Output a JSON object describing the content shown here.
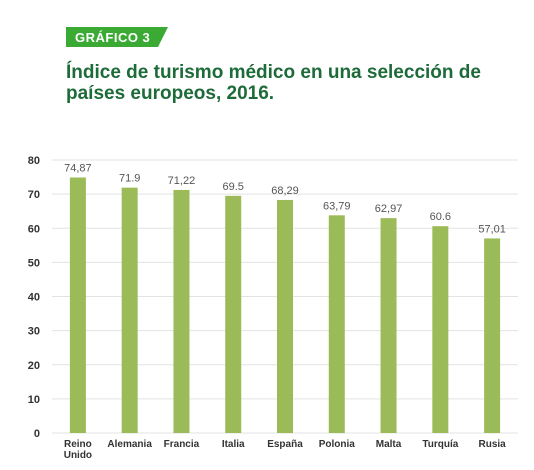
{
  "badge": {
    "label": "GRÁFICO 3",
    "color": "#3aaa35"
  },
  "title": "Índice de turismo médico en una selección de países europeos, 2016.",
  "chart_data": {
    "type": "bar",
    "title": "Índice de turismo médico en una selección de países europeos, 2016.",
    "xlabel": "",
    "ylabel": "",
    "categories": [
      "Reino Unido",
      "Alemania",
      "Francia",
      "Italia",
      "España",
      "Polonia",
      "Malta",
      "Turquía",
      "Rusia"
    ],
    "category_lines": [
      [
        "Reino",
        "Unido"
      ],
      [
        "Alemania"
      ],
      [
        "Francia"
      ],
      [
        "Italia"
      ],
      [
        "España"
      ],
      [
        "Polonia"
      ],
      [
        "Malta"
      ],
      [
        "Turquía"
      ],
      [
        "Rusia"
      ]
    ],
    "values": [
      74.87,
      71.9,
      71.22,
      69.5,
      68.29,
      63.79,
      62.97,
      60.6,
      57.01
    ],
    "value_labels": [
      "74,87",
      "71.9",
      "71,22",
      "69.5",
      "68,29",
      "63,79",
      "62,97",
      "60.6",
      "57,01"
    ],
    "yticks": [
      0,
      10,
      20,
      30,
      40,
      50,
      60,
      70,
      80
    ],
    "ylim": [
      0,
      80
    ],
    "grid": true,
    "legend": "none",
    "bar_color": "#9bbb59",
    "grid_color": "#e3e3e3"
  }
}
